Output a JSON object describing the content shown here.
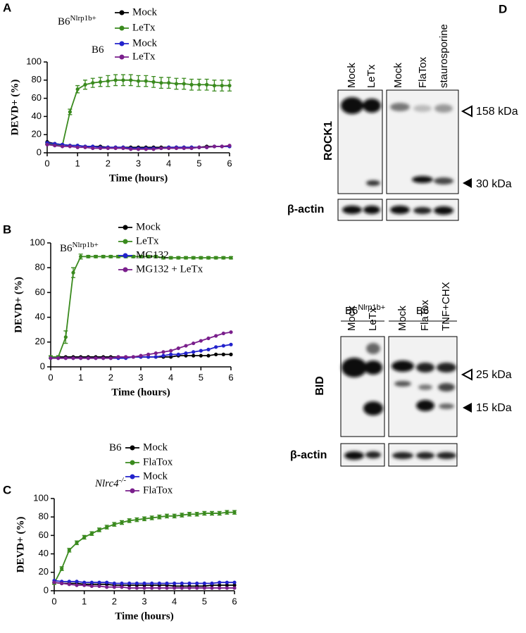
{
  "chart_data": [
    {
      "type": "line",
      "label": "A",
      "ylabel": "DEVD+ (%)",
      "xlabel": "Time (hours)",
      "xlim": [
        0,
        6
      ],
      "xticks": [
        0,
        1,
        2,
        3,
        4,
        5,
        6
      ],
      "ylim": [
        0,
        100
      ],
      "yticks": [
        0,
        20,
        40,
        60,
        80,
        100
      ],
      "legend_groups": [
        {
          "text": "B6",
          "sup": "Nlrp1b+",
          "italic": false
        },
        {
          "text": "B6",
          "italic": false
        }
      ],
      "x": [
        0,
        0.25,
        0.5,
        0.75,
        1,
        1.25,
        1.5,
        1.75,
        2,
        2.25,
        2.5,
        2.75,
        3,
        3.25,
        3.5,
        3.75,
        4,
        4.25,
        4.5,
        4.75,
        5,
        5.25,
        5.5,
        5.75,
        6
      ],
      "series": [
        {
          "name": "Mock",
          "color": "#000000",
          "values": [
            12,
            10,
            9,
            8,
            8,
            7,
            7,
            7,
            6,
            6,
            6,
            6,
            6,
            6,
            6,
            6,
            6,
            6,
            6,
            6,
            6,
            7,
            7,
            7,
            7
          ]
        },
        {
          "name": "LeTx",
          "color": "#3a8a1e",
          "values": [
            10,
            9,
            8,
            45,
            70,
            75,
            77,
            78,
            79,
            80,
            80,
            80,
            79,
            79,
            78,
            77,
            77,
            76,
            76,
            75,
            75,
            75,
            74,
            74,
            74
          ],
          "errors": [
            1,
            1,
            1,
            3,
            4,
            5,
            5,
            5,
            6,
            6,
            6,
            6,
            6,
            6,
            6,
            6,
            6,
            6,
            6,
            6,
            6,
            6,
            6,
            6,
            6
          ]
        },
        {
          "name": "Mock",
          "color": "#2222cc",
          "values": [
            11,
            10,
            9,
            8,
            8,
            7,
            7,
            6,
            6,
            6,
            6,
            5,
            5,
            5,
            5,
            5,
            6,
            6,
            6,
            6,
            6,
            6,
            7,
            7,
            7
          ]
        },
        {
          "name": "LeTx",
          "color": "#7a1f8c",
          "values": [
            9,
            8,
            7,
            7,
            6,
            6,
            5,
            5,
            5,
            5,
            5,
            4,
            4,
            4,
            4,
            5,
            5,
            5,
            5,
            5,
            6,
            6,
            7,
            7,
            8
          ]
        }
      ]
    },
    {
      "type": "line",
      "label": "B",
      "ylabel": "DEVD+ (%)",
      "xlabel": "Time (hours)",
      "xlim": [
        0,
        6
      ],
      "xticks": [
        0,
        1,
        2,
        3,
        4,
        5,
        6
      ],
      "ylim": [
        0,
        100
      ],
      "yticks": [
        0,
        20,
        40,
        60,
        80,
        100
      ],
      "legend_groups": [
        {
          "text": "B6",
          "sup": "Nlrp1b+",
          "italic": false
        }
      ],
      "x": [
        0,
        0.25,
        0.5,
        0.75,
        1,
        1.25,
        1.5,
        1.75,
        2,
        2.25,
        2.5,
        2.75,
        3,
        3.25,
        3.5,
        3.75,
        4,
        4.25,
        4.5,
        4.75,
        5,
        5.25,
        5.5,
        5.75,
        6
      ],
      "series": [
        {
          "name": "Mock",
          "color": "#000000",
          "values": [
            8,
            8,
            8,
            8,
            8,
            8,
            8,
            8,
            8,
            8,
            8,
            8,
            8,
            8,
            8,
            8,
            8,
            9,
            9,
            9,
            9,
            9,
            10,
            10,
            10
          ]
        },
        {
          "name": "LeTx",
          "color": "#3a8a1e",
          "values": [
            8,
            8,
            24,
            76,
            89,
            89,
            89,
            89,
            89,
            89,
            89,
            89,
            89,
            89,
            89,
            88,
            88,
            88,
            88,
            88,
            88,
            88,
            88,
            88,
            88
          ],
          "errors": [
            1,
            1,
            5,
            4,
            2,
            1,
            1,
            1,
            1,
            1,
            1,
            1,
            1,
            1,
            1,
            1,
            1,
            1,
            1,
            1,
            1,
            1,
            1,
            1,
            1
          ]
        },
        {
          "name": "MG132",
          "color": "#2222cc",
          "values": [
            7,
            7,
            7,
            7,
            7,
            7,
            7,
            7,
            7,
            7,
            7,
            8,
            8,
            8,
            8,
            9,
            10,
            10,
            11,
            12,
            13,
            14,
            16,
            17,
            18
          ]
        },
        {
          "name": "MG132 + LeTx",
          "color": "#7a1f8c",
          "values": [
            7,
            7,
            7,
            7,
            7,
            7,
            7,
            7,
            7,
            8,
            8,
            8,
            9,
            10,
            11,
            12,
            13,
            15,
            17,
            19,
            21,
            23,
            25,
            27,
            28
          ]
        }
      ]
    },
    {
      "type": "line",
      "label": "C",
      "ylabel": "DEVD+ (%)",
      "xlabel": "Time (hours)",
      "xlim": [
        0,
        6
      ],
      "xticks": [
        0,
        1,
        2,
        3,
        4,
        5,
        6
      ],
      "ylim": [
        0,
        100
      ],
      "yticks": [
        0,
        20,
        40,
        60,
        80,
        100
      ],
      "legend_groups": [
        {
          "text": "B6",
          "italic": false
        },
        {
          "text": "Nlrc4",
          "sup": "-/-",
          "italic": true
        }
      ],
      "x": [
        0,
        0.25,
        0.5,
        0.75,
        1,
        1.25,
        1.5,
        1.75,
        2,
        2.25,
        2.5,
        2.75,
        3,
        3.25,
        3.5,
        3.75,
        4,
        4.25,
        4.5,
        4.75,
        5,
        5.25,
        5.5,
        5.75,
        6
      ],
      "series": [
        {
          "name": "Mock",
          "color": "#000000",
          "values": [
            9,
            8,
            8,
            8,
            7,
            7,
            7,
            7,
            6,
            6,
            6,
            6,
            6,
            6,
            6,
            6,
            5,
            5,
            5,
            5,
            5,
            6,
            6,
            6,
            6
          ]
        },
        {
          "name": "FlaTox",
          "color": "#3a8a1e",
          "values": [
            8,
            24,
            44,
            52,
            58,
            62,
            66,
            69,
            72,
            74,
            76,
            77,
            78,
            79,
            80,
            81,
            81,
            82,
            83,
            83,
            84,
            84,
            84,
            85,
            85
          ],
          "errors": [
            1,
            2,
            2,
            2,
            2,
            2,
            2,
            2,
            2,
            2,
            2,
            2,
            2,
            2,
            2,
            2,
            2,
            2,
            2,
            2,
            2,
            2,
            2,
            2,
            2
          ]
        },
        {
          "name": "Mock",
          "color": "#2222cc",
          "values": [
            11,
            10,
            10,
            10,
            9,
            9,
            9,
            9,
            8,
            8,
            8,
            8,
            8,
            8,
            8,
            8,
            8,
            8,
            8,
            8,
            8,
            8,
            9,
            9,
            9
          ]
        },
        {
          "name": "FlaTox",
          "color": "#7a1f8c",
          "values": [
            9,
            8,
            7,
            6,
            6,
            5,
            5,
            4,
            4,
            4,
            3,
            3,
            3,
            3,
            3,
            3,
            3,
            3,
            3,
            3,
            3,
            3,
            3,
            3,
            3
          ]
        }
      ]
    }
  ],
  "blots": {
    "label": "D",
    "top": {
      "lanes": [
        "Mock",
        "LeTx",
        "Mock",
        "FlaTox",
        "staurosporine"
      ],
      "protein": "ROCK1",
      "loading": "β-actin",
      "markers": [
        "158 kDa",
        "30 kDa"
      ]
    },
    "bottom": {
      "groups": [
        {
          "text": "B6",
          "sup": "Nlrp1b+"
        },
        {
          "text": "B6"
        }
      ],
      "lanes": [
        "Mock",
        "LeTx",
        "Mock",
        "FlaTox",
        "TNF+CHX"
      ],
      "protein": "BID",
      "loading": "β-actin",
      "markers": [
        "25 kDa",
        "15 kDa"
      ]
    }
  }
}
